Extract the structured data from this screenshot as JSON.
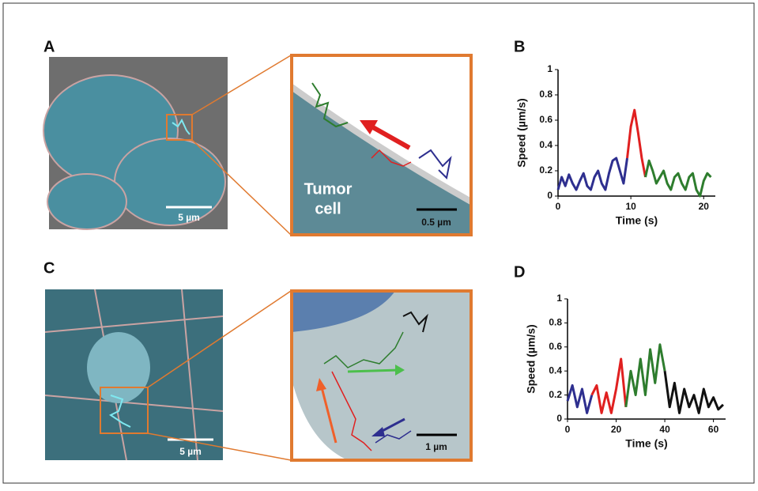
{
  "figure": {
    "panels": [
      "A",
      "B",
      "C",
      "D"
    ],
    "scale_bars": [
      "5 µm",
      "0.5 µm",
      "5 µm",
      "1 µm"
    ],
    "inset_label": [
      "Tumor",
      "cell"
    ]
  },
  "chart_data": [
    {
      "type": "line",
      "xlabel": "Time (s)",
      "ylabel": "Speed (µm/s)",
      "xlim": [
        0,
        21.6
      ],
      "xticks": [
        0,
        10,
        20
      ],
      "ylim": [
        0,
        1
      ],
      "yticks": [
        0,
        0.2,
        0.4,
        0.6,
        0.8,
        1
      ],
      "series": [
        {
          "color": "#2e2f8f",
          "x": [
            0,
            0.5,
            1,
            1.5,
            2,
            2.5,
            3,
            3.5,
            4,
            4.5,
            5,
            5.5,
            6,
            6.5,
            7,
            7.5,
            8,
            8.5,
            9,
            9.5
          ],
          "values": [
            0.05,
            0.15,
            0.08,
            0.17,
            0.1,
            0.05,
            0.12,
            0.18,
            0.08,
            0.05,
            0.15,
            0.2,
            0.1,
            0.05,
            0.18,
            0.28,
            0.3,
            0.2,
            0.1,
            0.3
          ]
        },
        {
          "color": "#e02020",
          "x": [
            9.5,
            10,
            10.5,
            11,
            11.5,
            12
          ],
          "values": [
            0.3,
            0.55,
            0.68,
            0.5,
            0.3,
            0.15
          ]
        },
        {
          "color": "#2e7d2e",
          "x": [
            12,
            12.5,
            13,
            13.5,
            14,
            14.5,
            15,
            15.5,
            16,
            16.5,
            17,
            17.5,
            18,
            18.5,
            19,
            19.5,
            20,
            20.5,
            21
          ],
          "values": [
            0.15,
            0.28,
            0.2,
            0.1,
            0.15,
            0.2,
            0.1,
            0.05,
            0.15,
            0.18,
            0.1,
            0.05,
            0.15,
            0.18,
            0.05,
            0.0,
            0.12,
            0.18,
            0.15
          ]
        }
      ]
    },
    {
      "type": "line",
      "xlabel": "Time (s)",
      "ylabel": "Speed (µm/s)",
      "xlim": [
        0,
        65
      ],
      "xticks": [
        0,
        20,
        40,
        60
      ],
      "ylim": [
        0,
        1
      ],
      "yticks": [
        0,
        0.2,
        0.4,
        0.6,
        0.8,
        1
      ],
      "series": [
        {
          "color": "#2e2f8f",
          "x": [
            0,
            2,
            4,
            6,
            8,
            10
          ],
          "values": [
            0.15,
            0.28,
            0.1,
            0.25,
            0.05,
            0.2
          ]
        },
        {
          "color": "#e02020",
          "x": [
            10,
            12,
            14,
            16,
            18,
            20,
            22,
            24
          ],
          "values": [
            0.2,
            0.28,
            0.05,
            0.22,
            0.05,
            0.25,
            0.5,
            0.1
          ]
        },
        {
          "color": "#2e7d2e",
          "x": [
            24,
            26,
            28,
            30,
            32,
            34,
            36,
            38,
            40
          ],
          "values": [
            0.1,
            0.4,
            0.2,
            0.5,
            0.2,
            0.58,
            0.3,
            0.62,
            0.4
          ]
        },
        {
          "color": "#111111",
          "x": [
            40,
            42,
            44,
            46,
            48,
            50,
            52,
            54,
            56,
            58,
            60,
            62,
            64
          ],
          "values": [
            0.4,
            0.1,
            0.3,
            0.05,
            0.25,
            0.1,
            0.2,
            0.05,
            0.25,
            0.1,
            0.18,
            0.08,
            0.12
          ]
        }
      ]
    }
  ]
}
